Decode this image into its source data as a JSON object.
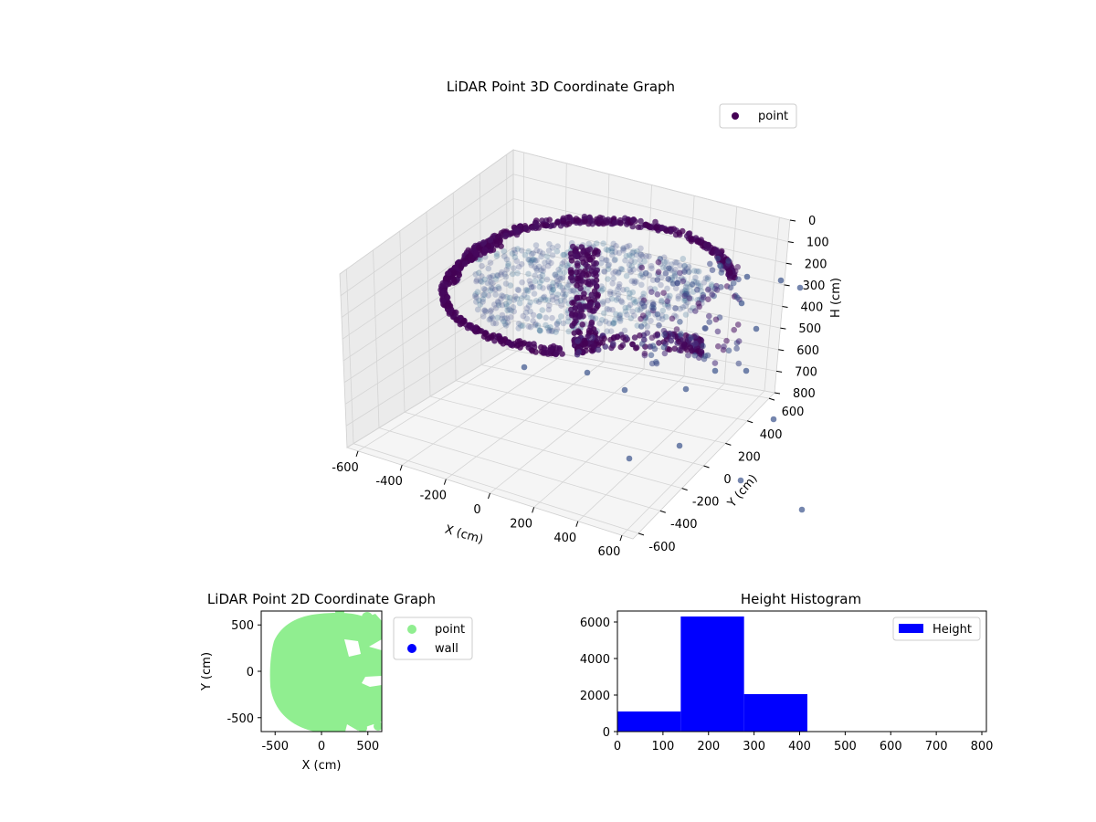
{
  "chart_data": [
    {
      "type": "scatter",
      "title": "LiDAR Point 3D Coordinate Graph",
      "xlabel": "X (cm)",
      "ylabel": "Y (cm)",
      "zlabel": "H (cm)",
      "x_ticks": [
        "-600",
        "-400",
        "-200",
        "0",
        "200",
        "400",
        "600"
      ],
      "y_ticks": [
        "-600",
        "-400",
        "-200",
        "0",
        "200",
        "400",
        "600"
      ],
      "z_ticks": [
        "0",
        "100",
        "200",
        "300",
        "400",
        "500",
        "600",
        "700",
        "800"
      ],
      "xlim": [
        -650,
        650
      ],
      "ylim": [
        -650,
        650
      ],
      "zlim": [
        0,
        800
      ],
      "z_inverted": true,
      "grid": true,
      "legend": {
        "placement": "top-right",
        "entries": [
          {
            "label": "point",
            "color": "#440154"
          }
        ]
      },
      "colormap": "viridis",
      "series": [
        {
          "name": "point"
        }
      ]
    },
    {
      "type": "scatter",
      "title": "LiDAR Point 2D Coordinate Graph",
      "xlabel": "X (cm)",
      "ylabel": "Y (cm)",
      "x_ticks": [
        "-500",
        "0",
        "500"
      ],
      "y_ticks": [
        "500",
        "0",
        "-500"
      ],
      "xlim": [
        -650,
        650
      ],
      "ylim": [
        -650,
        650
      ],
      "grid": false,
      "legend": {
        "placement": "outside-right",
        "entries": [
          {
            "label": "point",
            "color": "#90ee90"
          },
          {
            "label": "wall",
            "color": "#0000ff"
          }
        ]
      },
      "series": [
        {
          "name": "point",
          "color": "#90ee90"
        },
        {
          "name": "wall",
          "color": "#0000ff",
          "values": []
        }
      ]
    },
    {
      "type": "bar",
      "title": "Height Histogram",
      "xlim": [
        0,
        810
      ],
      "ylim": [
        0,
        6600
      ],
      "x_ticks": [
        "0",
        "100",
        "200",
        "300",
        "400",
        "500",
        "600",
        "700",
        "800"
      ],
      "y_ticks": [
        "0",
        "2000",
        "4000",
        "6000"
      ],
      "bin_edges": [
        0,
        139,
        278,
        417,
        556,
        695,
        810
      ],
      "values": [
        1100,
        6300,
        2050,
        15,
        10,
        12
      ],
      "color": "#0000ff",
      "legend": {
        "placement": "top-right",
        "entries": [
          {
            "label": "Height",
            "color": "#0000ff"
          }
        ]
      },
      "series": [
        {
          "name": "Height"
        }
      ]
    }
  ]
}
